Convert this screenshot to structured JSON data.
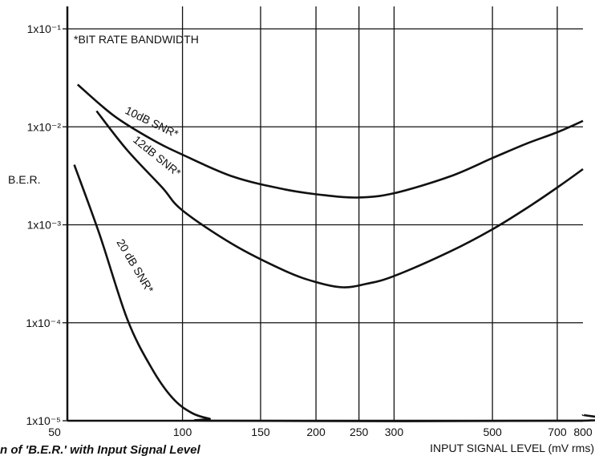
{
  "chart_data": {
    "type": "line",
    "title": "",
    "xlabel": "INPUT SIGNAL LEVEL (mV rms)",
    "ylabel": "B.E.R.",
    "x_scale": "log",
    "y_scale": "log",
    "xlim": [
      55,
      800
    ],
    "ylim": [
      1e-05,
      0.1
    ],
    "grid": true,
    "x_ticks": [
      {
        "value": 50,
        "label": "50"
      },
      {
        "value": 100,
        "label": "100"
      },
      {
        "value": 150,
        "label": "150"
      },
      {
        "value": 200,
        "label": "200"
      },
      {
        "value": 250,
        "label": "250"
      },
      {
        "value": 300,
        "label": "300"
      },
      {
        "value": 500,
        "label": "500"
      },
      {
        "value": 700,
        "label": "700"
      },
      {
        "value": 800,
        "label": "800"
      }
    ],
    "x_grid_values": [
      100,
      150,
      200,
      250,
      300,
      500,
      700
    ],
    "y_ticks": [
      {
        "value": 0.1,
        "label": "1x10⁻¹"
      },
      {
        "value": 0.01,
        "label": "1x10⁻²"
      },
      {
        "value": 0.001,
        "label": "1x10⁻³"
      },
      {
        "value": 0.0001,
        "label": "1x10⁻⁴"
      },
      {
        "value": 1e-05,
        "label": "1x10⁻⁵"
      }
    ],
    "annotations": [
      {
        "text": "*BIT RATE BANDWIDTH"
      }
    ],
    "series": [
      {
        "name": "10dB SNR*",
        "x": [
          58,
          70,
          85,
          100,
          130,
          170,
          210,
          250,
          300,
          400,
          500,
          600,
          700,
          800
        ],
        "y": [
          0.027,
          0.013,
          0.0075,
          0.0052,
          0.0031,
          0.0023,
          0.002,
          0.0019,
          0.0021,
          0.0031,
          0.0048,
          0.0068,
          0.0088,
          0.0115
        ]
      },
      {
        "name": "12dB SNR*",
        "x": [
          64,
          75,
          90,
          100,
          130,
          170,
          200,
          230,
          260,
          300,
          400,
          500,
          600,
          700,
          800
        ],
        "y": [
          0.0145,
          0.0058,
          0.0024,
          0.0014,
          0.00063,
          0.00034,
          0.00026,
          0.00023,
          0.00025,
          0.0003,
          0.00053,
          0.0009,
          0.0015,
          0.0024,
          0.0037
        ]
      },
      {
        "name": "20 dB SNR*",
        "x": [
          57,
          65,
          75,
          85,
          95,
          105,
          115,
          125,
          780,
          800
        ],
        "y": [
          0.0041,
          0.0008,
          0.00011,
          3.5e-05,
          1.7e-05,
          1.2e-05,
          1.05e-05,
          1e-05,
          1e-05,
          1.15e-05
        ]
      }
    ]
  },
  "caption": "n of 'B.E.R.' with Input Signal Level"
}
